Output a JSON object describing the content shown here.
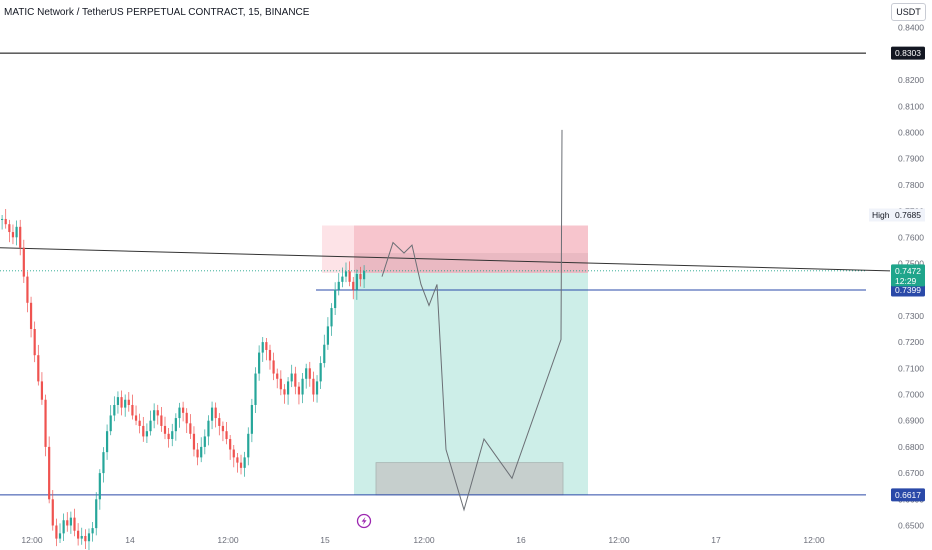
{
  "header": {
    "title": "MATIC Network / TetherUS PERPETUAL CONTRACT, 15, BINANCE",
    "currency": "USDT"
  },
  "price_scale": {
    "labels": [
      "0.8400",
      "0.8300",
      "0.8200",
      "0.8100",
      "0.8000",
      "0.7900",
      "0.7800",
      "0.7700",
      "0.7600",
      "0.7500",
      "0.7400",
      "0.7300",
      "0.7200",
      "0.7100",
      "0.7000",
      "0.6900",
      "0.6800",
      "0.6700",
      "0.6600",
      "0.6500"
    ]
  },
  "time_scale": {
    "labels": [
      "12:00",
      "14",
      "12:00",
      "15",
      "12:00",
      "16",
      "12:00",
      "17",
      "12:00"
    ]
  },
  "tags": {
    "resistance": "0.8303",
    "high_label": "High",
    "high_value": "0.7685",
    "last_price": "0.7472",
    "countdown": "12:29",
    "entry": "0.7399",
    "support": "0.6617"
  },
  "colors": {
    "up": "#26a69a",
    "down": "#ef5350",
    "stop_zone": "#f7c5cd",
    "target_zone": "#cdeee8",
    "level_blue": "#2a49a8",
    "last_price_green": "#1fa58b"
  },
  "icons": {
    "event": "lightning-icon"
  },
  "chart_data": {
    "type": "candlestick",
    "title": "MATIC Network / TetherUS PERPETUAL CONTRACT, 15, BINANCE",
    "ylim": [
      0.65,
      0.84
    ],
    "x_ticks": [
      "12:00",
      "14",
      "12:00",
      "15",
      "12:00",
      "16",
      "12:00",
      "17",
      "12:00"
    ],
    "y_ticks": [
      0.84,
      0.83,
      0.82,
      0.81,
      0.8,
      0.79,
      0.78,
      0.77,
      0.76,
      0.75,
      0.74,
      0.73,
      0.72,
      0.71,
      0.7,
      0.69,
      0.68,
      0.67,
      0.66,
      0.65
    ],
    "price_path_close": [
      0.767,
      0.765,
      0.762,
      0.76,
      0.764,
      0.756,
      0.745,
      0.735,
      0.725,
      0.715,
      0.705,
      0.698,
      0.68,
      0.66,
      0.65,
      0.645,
      0.647,
      0.652,
      0.65,
      0.653,
      0.648,
      0.645,
      0.646,
      0.644,
      0.647,
      0.649,
      0.66,
      0.67,
      0.678,
      0.686,
      0.692,
      0.696,
      0.699,
      0.695,
      0.698,
      0.696,
      0.692,
      0.69,
      0.688,
      0.684,
      0.686,
      0.69,
      0.694,
      0.692,
      0.688,
      0.685,
      0.683,
      0.686,
      0.691,
      0.695,
      0.693,
      0.689,
      0.685,
      0.679,
      0.676,
      0.68,
      0.684,
      0.69,
      0.695,
      0.691,
      0.688,
      0.686,
      0.683,
      0.679,
      0.676,
      0.674,
      0.672,
      0.676,
      0.685,
      0.696,
      0.708,
      0.716,
      0.72,
      0.717,
      0.713,
      0.708,
      0.706,
      0.702,
      0.7,
      0.705,
      0.708,
      0.703,
      0.7,
      0.706,
      0.71,
      0.706,
      0.7,
      0.705,
      0.712,
      0.719,
      0.726,
      0.733,
      0.74,
      0.743,
      0.745,
      0.747,
      0.743,
      0.74,
      0.746,
      0.744,
      0.7472
    ],
    "levels": [
      {
        "name": "resistance",
        "value": 0.8303
      },
      {
        "name": "entry",
        "value": 0.7399
      },
      {
        "name": "support",
        "value": 0.6617
      },
      {
        "name": "high",
        "value": 0.7685
      },
      {
        "name": "last",
        "value": 0.7472
      }
    ],
    "trendline": {
      "start": 0.756,
      "end": 0.7472
    },
    "position": {
      "entry": 0.7399,
      "stop_top": 0.7645,
      "stop_inner_top": 0.754,
      "target": 0.6617,
      "target_box": [
        0.6617,
        0.674
      ]
    },
    "projection": [
      0.745,
      0.758,
      0.754,
      0.757,
      0.742,
      0.734,
      0.742,
      0.679,
      0.656,
      0.683,
      0.668,
      0.721,
      0.801
    ]
  }
}
